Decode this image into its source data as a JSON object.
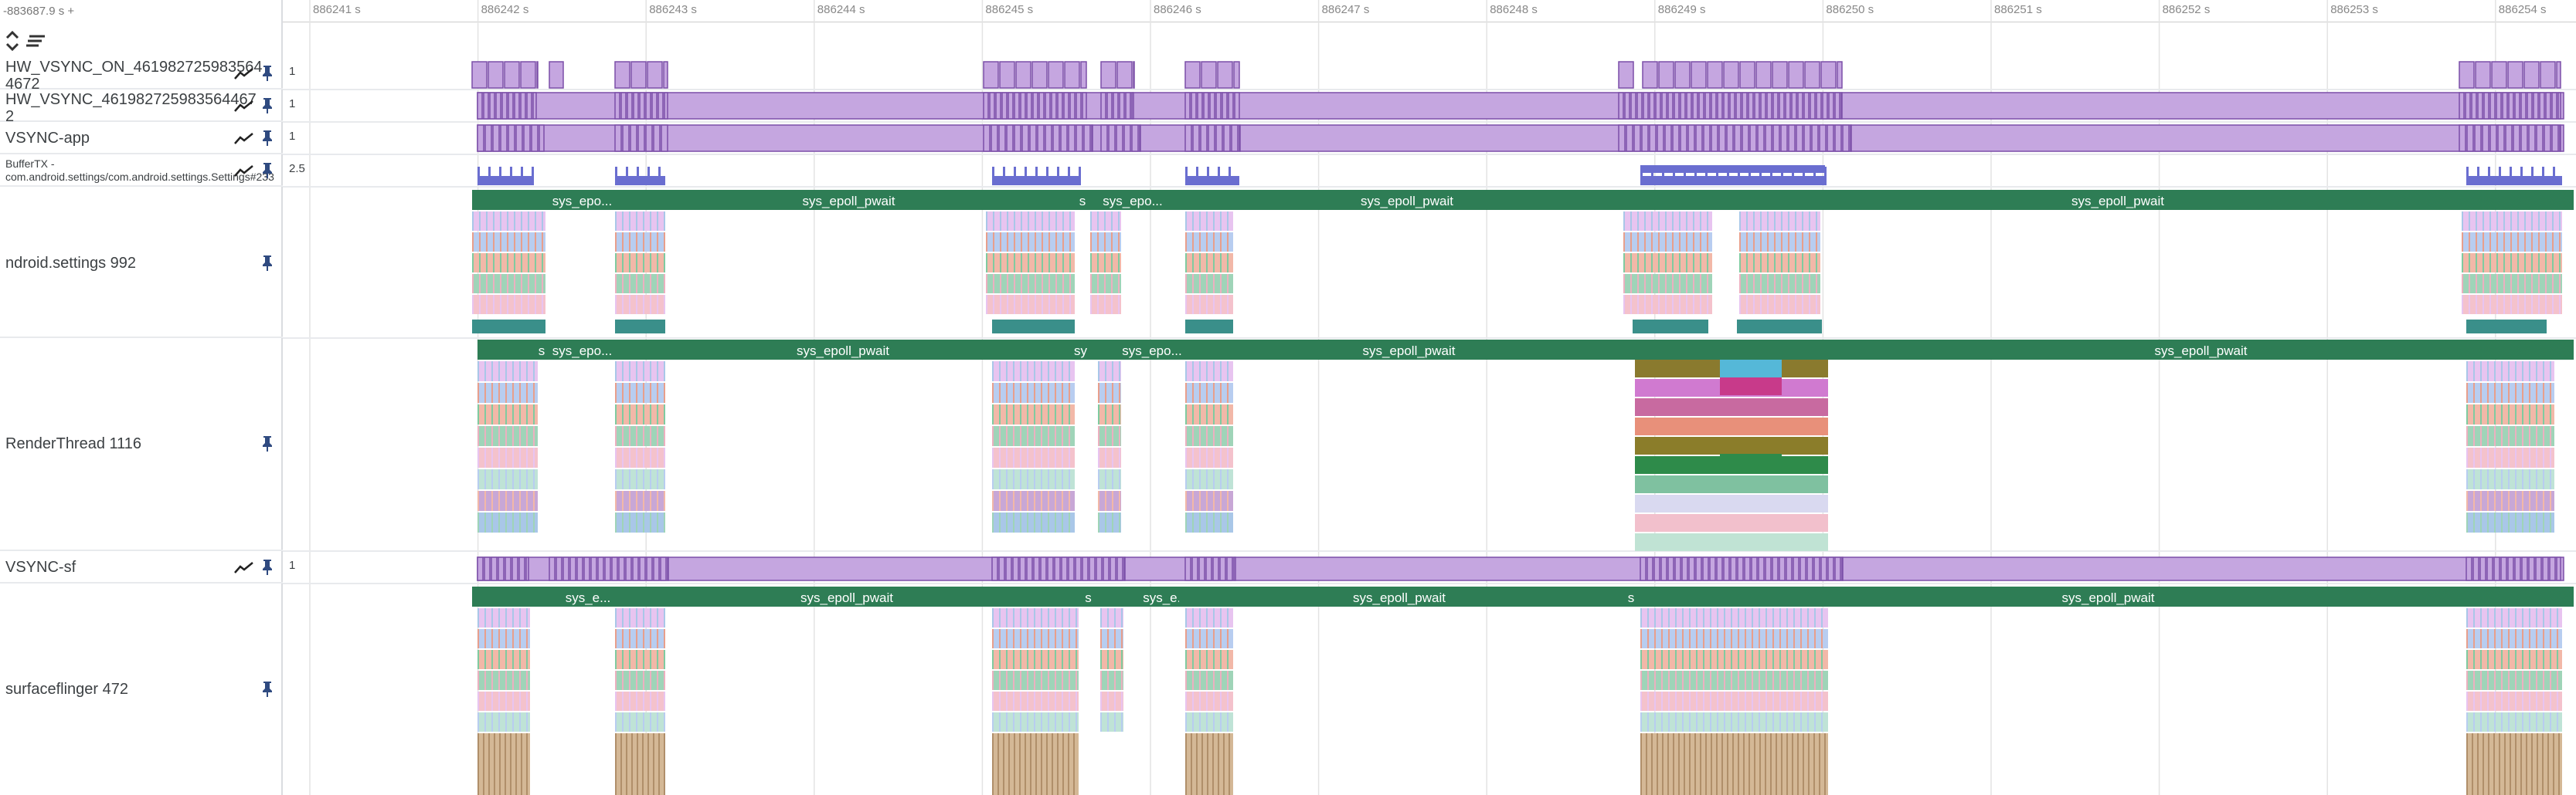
{
  "time_offset": "-883687.9 s +",
  "ruler_ticks": [
    "886241 s",
    "886242 s",
    "886243 s",
    "886244 s",
    "886245 s",
    "886246 s",
    "886247 s",
    "886248 s",
    "886249 s",
    "886250 s",
    "886251 s",
    "886252 s",
    "886253 s",
    "886254 s"
  ],
  "tracks": [
    {
      "name": "HW_VSYNC_ON_461982725983564 4672",
      "max": "1"
    },
    {
      "name": "HW_VSYNC_461982725983564467 2",
      "max": "1"
    },
    {
      "name": "VSYNC-app",
      "max": "1"
    },
    {
      "name": "BufferTX - com.android.settings/com.android.settings.Settings#233",
      "max": "2.5"
    },
    {
      "name": "ndroid.settings 992"
    },
    {
      "name": "RenderThread 1116"
    },
    {
      "name": "VSYNC-sf",
      "max": "1"
    },
    {
      "name": "surfaceflinger 472"
    }
  ],
  "settings_slices": [
    "sys_epo...",
    "sys_epoll_pwait",
    "s",
    "sys_epo...",
    "sys_epoll_pwait",
    "sys_epoll_pwait"
  ],
  "render_slices": [
    "s",
    "sys_epo...",
    "sys_epoll_pwait",
    "sy",
    "sys_epo...",
    "sys_epoll_pwait",
    "sys_epoll_pwait"
  ],
  "sf_slices": [
    "sys_e...",
    "sys_epoll_pwait",
    "s",
    "sys_e...",
    "sys_epoll_pwait",
    "s",
    "sys_epoll_pwait"
  ],
  "colors": {
    "counter_fill": "#c5a6e0",
    "counter_stroke": "#7b4fa8",
    "buffer_fill": "#6a6ed0",
    "slice_green": "#2e7d55",
    "arrow": "#3a8f8a"
  },
  "icons": {
    "chart": "line-chart-icon",
    "pin": "pin-icon",
    "collapse": "expand-collapse-icon",
    "sort": "sort-lines-icon"
  }
}
